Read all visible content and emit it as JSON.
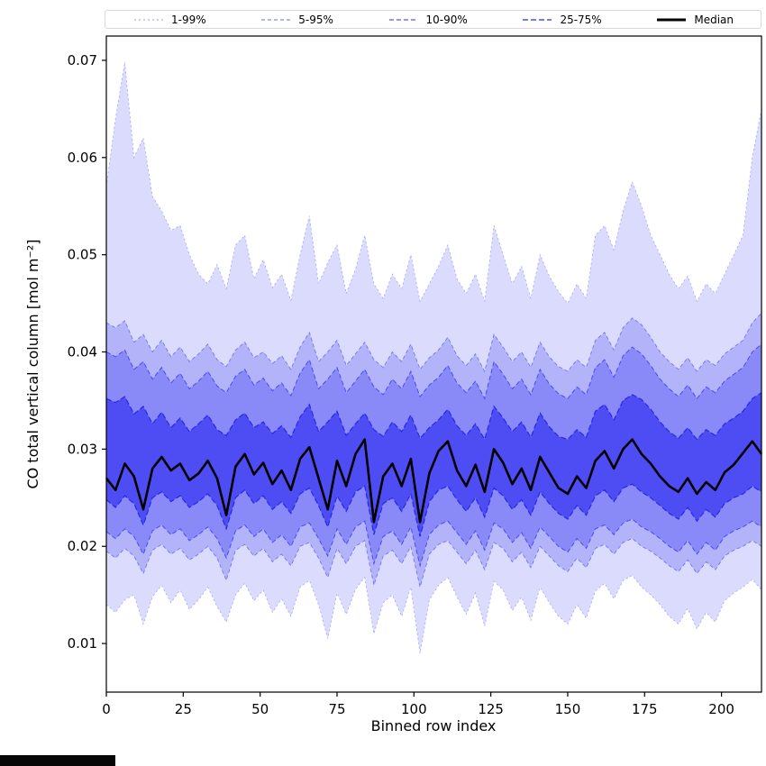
{
  "misc": {
    "background_color": "#ffffff",
    "bottom_left_bar_color": "#060606"
  },
  "chart_data": {
    "type": "area",
    "title": "",
    "xlabel": "Binned row index",
    "ylabel": "CO total vertical column [mol m⁻²]",
    "xlim": [
      0,
      213
    ],
    "ylim": [
      0.005,
      0.0725
    ],
    "xticks": [
      0,
      25,
      50,
      75,
      100,
      125,
      150,
      175,
      200
    ],
    "yticks": [
      0.01,
      0.02,
      0.03,
      0.04,
      0.05,
      0.06,
      0.07
    ],
    "grid": false,
    "legend_position": "top",
    "x": [
      0,
      3,
      6,
      9,
      12,
      15,
      18,
      21,
      24,
      27,
      30,
      33,
      36,
      39,
      42,
      45,
      48,
      51,
      54,
      57,
      60,
      63,
      66,
      69,
      72,
      75,
      78,
      81,
      84,
      87,
      90,
      93,
      96,
      99,
      102,
      105,
      108,
      111,
      114,
      117,
      120,
      123,
      126,
      129,
      132,
      135,
      138,
      141,
      144,
      147,
      150,
      153,
      156,
      159,
      162,
      165,
      168,
      171,
      174,
      177,
      180,
      183,
      186,
      189,
      192,
      195,
      198,
      201,
      204,
      207,
      210,
      213
    ],
    "bands": [
      {
        "label": "1-99%",
        "lower_key": "p01",
        "upper_key": "p99",
        "fill": "rgba(90,90,245,0.22)",
        "edge": "rgba(100,100,250,0.55)",
        "dash": "2,3",
        "edge_width": 0.8
      },
      {
        "label": "5-95%",
        "lower_key": "p05",
        "upper_key": "p95",
        "fill": "rgba(85,85,245,0.30)",
        "edge": "rgba(80,80,248,0.70)",
        "dash": "4,3",
        "edge_width": 0.9
      },
      {
        "label": "10-90%",
        "lower_key": "p10",
        "upper_key": "p90",
        "fill": "rgba(75,75,245,0.40)",
        "edge": "rgba(60,60,245,0.85)",
        "dash": "5,3",
        "edge_width": 1.0
      },
      {
        "label": "25-75%",
        "lower_key": "p25",
        "upper_key": "p75",
        "fill": "rgba(45,45,240,0.66)",
        "edge": "rgba(40,40,230,1.0)",
        "dash": "6,3",
        "edge_width": 1.2
      }
    ],
    "median": {
      "label": "Median",
      "color": "#000000",
      "width": 2.6,
      "values": [
        0.027,
        0.0258,
        0.0285,
        0.0272,
        0.0238,
        0.028,
        0.0292,
        0.0278,
        0.0285,
        0.0268,
        0.0275,
        0.0288,
        0.027,
        0.0232,
        0.0282,
        0.0295,
        0.0274,
        0.0286,
        0.0264,
        0.0278,
        0.0258,
        0.029,
        0.0302,
        0.027,
        0.0238,
        0.0288,
        0.0262,
        0.0295,
        0.031,
        0.0225,
        0.0272,
        0.0285,
        0.0262,
        0.029,
        0.0225,
        0.0275,
        0.0298,
        0.0308,
        0.0278,
        0.0262,
        0.0284,
        0.0256,
        0.03,
        0.0286,
        0.0264,
        0.028,
        0.0258,
        0.0292,
        0.0276,
        0.026,
        0.0254,
        0.0272,
        0.026,
        0.0288,
        0.0298,
        0.028,
        0.03,
        0.031,
        0.0295,
        0.0285,
        0.0272,
        0.0262,
        0.0256,
        0.027,
        0.0254,
        0.0266,
        0.0258,
        0.0276,
        0.0284,
        0.0296,
        0.0308,
        0.0295
      ]
    },
    "percentiles": {
      "p99": [
        0.057,
        0.064,
        0.0698,
        0.06,
        0.062,
        0.056,
        0.0545,
        0.0525,
        0.053,
        0.05,
        0.048,
        0.047,
        0.049,
        0.0465,
        0.051,
        0.052,
        0.0475,
        0.0495,
        0.0466,
        0.048,
        0.0453,
        0.05,
        0.054,
        0.047,
        0.0492,
        0.051,
        0.046,
        0.0485,
        0.052,
        0.047,
        0.0455,
        0.048,
        0.0465,
        0.05,
        0.0452,
        0.047,
        0.0488,
        0.051,
        0.0475,
        0.046,
        0.048,
        0.0452,
        0.053,
        0.05,
        0.047,
        0.0488,
        0.0455,
        0.05,
        0.0478,
        0.0462,
        0.045,
        0.047,
        0.0455,
        0.052,
        0.053,
        0.0505,
        0.0545,
        0.0575,
        0.055,
        0.052,
        0.05,
        0.048,
        0.0465,
        0.0478,
        0.0452,
        0.047,
        0.046,
        0.048,
        0.05,
        0.052,
        0.06,
        0.065
      ],
      "p95": [
        0.043,
        0.0425,
        0.0432,
        0.041,
        0.0418,
        0.04,
        0.0412,
        0.0395,
        0.0405,
        0.039,
        0.0398,
        0.0408,
        0.0392,
        0.0385,
        0.0402,
        0.041,
        0.0394,
        0.04,
        0.0388,
        0.0396,
        0.0382,
        0.0405,
        0.042,
        0.039,
        0.04,
        0.0412,
        0.0386,
        0.0398,
        0.041,
        0.0392,
        0.0384,
        0.04,
        0.039,
        0.0408,
        0.0382,
        0.0394,
        0.0402,
        0.0415,
        0.0396,
        0.0386,
        0.0398,
        0.038,
        0.0418,
        0.0405,
        0.039,
        0.04,
        0.0384,
        0.041,
        0.0395,
        0.0385,
        0.038,
        0.0392,
        0.0384,
        0.0412,
        0.042,
        0.0402,
        0.0425,
        0.0435,
        0.0428,
        0.0415,
        0.04,
        0.039,
        0.0382,
        0.0394,
        0.038,
        0.0392,
        0.0386,
        0.0398,
        0.0405,
        0.0412,
        0.043,
        0.044
      ],
      "p90": [
        0.04,
        0.0395,
        0.0402,
        0.0382,
        0.039,
        0.0372,
        0.0384,
        0.0368,
        0.0378,
        0.0362,
        0.037,
        0.038,
        0.0365,
        0.0358,
        0.0375,
        0.0382,
        0.0366,
        0.0373,
        0.036,
        0.0368,
        0.0355,
        0.0378,
        0.0392,
        0.0362,
        0.0372,
        0.0384,
        0.0358,
        0.037,
        0.0382,
        0.0364,
        0.0356,
        0.0372,
        0.0362,
        0.038,
        0.0354,
        0.0366,
        0.0374,
        0.0386,
        0.0368,
        0.0358,
        0.037,
        0.0352,
        0.039,
        0.0377,
        0.0362,
        0.0372,
        0.0356,
        0.0382,
        0.0367,
        0.0357,
        0.0352,
        0.0364,
        0.0356,
        0.0384,
        0.0392,
        0.0374,
        0.0396,
        0.0405,
        0.0398,
        0.0386,
        0.0372,
        0.0362,
        0.0354,
        0.0366,
        0.0352,
        0.0364,
        0.0358,
        0.037,
        0.0377,
        0.0384,
        0.04,
        0.0408
      ],
      "p75": [
        0.0352,
        0.0348,
        0.0354,
        0.0336,
        0.0344,
        0.0326,
        0.0338,
        0.0322,
        0.0332,
        0.0318,
        0.0326,
        0.0335,
        0.032,
        0.0314,
        0.033,
        0.0337,
        0.0322,
        0.0328,
        0.0316,
        0.0324,
        0.0312,
        0.0333,
        0.0346,
        0.0318,
        0.0328,
        0.0339,
        0.0314,
        0.0326,
        0.0337,
        0.032,
        0.0313,
        0.0328,
        0.0318,
        0.0335,
        0.0311,
        0.0322,
        0.033,
        0.0341,
        0.0324,
        0.0314,
        0.0326,
        0.031,
        0.0344,
        0.0332,
        0.0318,
        0.0328,
        0.0312,
        0.0337,
        0.0323,
        0.0313,
        0.031,
        0.032,
        0.0312,
        0.0339,
        0.0346,
        0.033,
        0.035,
        0.0356,
        0.0351,
        0.0341,
        0.0328,
        0.0318,
        0.0311,
        0.0322,
        0.031,
        0.032,
        0.0314,
        0.0326,
        0.0332,
        0.0339,
        0.0352,
        0.0358
      ],
      "p25": [
        0.0248,
        0.024,
        0.0252,
        0.0244,
        0.0222,
        0.025,
        0.0256,
        0.0246,
        0.0252,
        0.024,
        0.0246,
        0.0254,
        0.0242,
        0.0218,
        0.025,
        0.0258,
        0.0244,
        0.0252,
        0.0238,
        0.0246,
        0.0234,
        0.0254,
        0.026,
        0.0242,
        0.022,
        0.0252,
        0.0236,
        0.0256,
        0.0262,
        0.0212,
        0.0244,
        0.025,
        0.0236,
        0.0254,
        0.021,
        0.0246,
        0.0258,
        0.0262,
        0.0248,
        0.0236,
        0.025,
        0.023,
        0.026,
        0.0252,
        0.0238,
        0.0248,
        0.0232,
        0.0256,
        0.0244,
        0.0234,
        0.0228,
        0.0242,
        0.0232,
        0.0252,
        0.0258,
        0.0246,
        0.026,
        0.0264,
        0.0256,
        0.025,
        0.0242,
        0.0234,
        0.0228,
        0.024,
        0.0226,
        0.0238,
        0.023,
        0.0244,
        0.025,
        0.0254,
        0.0262,
        0.0256
      ],
      "p10": [
        0.0215,
        0.0208,
        0.0218,
        0.021,
        0.0192,
        0.0216,
        0.0222,
        0.0212,
        0.0218,
        0.0206,
        0.0212,
        0.022,
        0.0208,
        0.0188,
        0.0216,
        0.0222,
        0.021,
        0.0218,
        0.0204,
        0.0212,
        0.02,
        0.022,
        0.0224,
        0.0208,
        0.019,
        0.0218,
        0.0202,
        0.022,
        0.0226,
        0.0182,
        0.021,
        0.0216,
        0.0202,
        0.022,
        0.018,
        0.0212,
        0.0222,
        0.0226,
        0.0214,
        0.0202,
        0.0216,
        0.0196,
        0.0224,
        0.0218,
        0.0204,
        0.0214,
        0.0198,
        0.022,
        0.021,
        0.02,
        0.0194,
        0.0208,
        0.0198,
        0.0218,
        0.0222,
        0.0212,
        0.0224,
        0.0228,
        0.022,
        0.0215,
        0.0208,
        0.02,
        0.0194,
        0.0206,
        0.0192,
        0.0204,
        0.0196,
        0.021,
        0.0216,
        0.022,
        0.0226,
        0.022
      ],
      "p05": [
        0.0195,
        0.0188,
        0.0198,
        0.019,
        0.0172,
        0.0196,
        0.0202,
        0.0192,
        0.0198,
        0.0186,
        0.0192,
        0.02,
        0.0188,
        0.0165,
        0.0196,
        0.0202,
        0.019,
        0.0198,
        0.0184,
        0.0192,
        0.018,
        0.02,
        0.0204,
        0.0188,
        0.0168,
        0.0198,
        0.0182,
        0.02,
        0.0206,
        0.016,
        0.019,
        0.0196,
        0.0182,
        0.02,
        0.0158,
        0.0192,
        0.0202,
        0.0206,
        0.0194,
        0.0182,
        0.0196,
        0.0176,
        0.0204,
        0.0198,
        0.0184,
        0.0194,
        0.0178,
        0.02,
        0.019,
        0.018,
        0.0174,
        0.0188,
        0.0178,
        0.0198,
        0.0202,
        0.0192,
        0.0204,
        0.0208,
        0.02,
        0.0195,
        0.0188,
        0.018,
        0.0174,
        0.0186,
        0.0172,
        0.0184,
        0.0176,
        0.019,
        0.0196,
        0.02,
        0.0206,
        0.02
      ],
      "p01": [
        0.014,
        0.0132,
        0.0145,
        0.015,
        0.012,
        0.0148,
        0.016,
        0.0142,
        0.0155,
        0.0135,
        0.0145,
        0.0158,
        0.0138,
        0.0122,
        0.015,
        0.0162,
        0.0144,
        0.0155,
        0.0132,
        0.0146,
        0.0128,
        0.0158,
        0.0165,
        0.014,
        0.0105,
        0.0152,
        0.013,
        0.0156,
        0.0168,
        0.011,
        0.0142,
        0.015,
        0.0128,
        0.0158,
        0.009,
        0.0145,
        0.016,
        0.0168,
        0.0148,
        0.013,
        0.0152,
        0.0118,
        0.0164,
        0.0155,
        0.0134,
        0.0148,
        0.0124,
        0.0158,
        0.0142,
        0.0128,
        0.012,
        0.014,
        0.0126,
        0.0154,
        0.0162,
        0.0146,
        0.0165,
        0.017,
        0.0158,
        0.015,
        0.014,
        0.0128,
        0.012,
        0.0136,
        0.0115,
        0.0132,
        0.0122,
        0.0144,
        0.0152,
        0.0158,
        0.0166,
        0.0155
      ]
    }
  }
}
